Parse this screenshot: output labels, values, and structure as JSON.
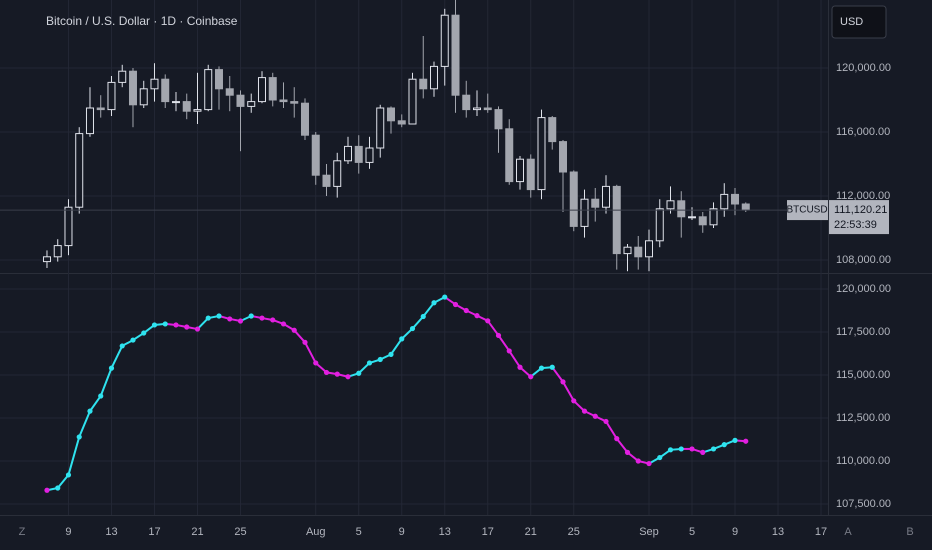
{
  "chart_data": [
    {
      "type": "candlestick",
      "title": "Bitcoin / U.S. Dollar · 1D · Coinbase",
      "up_color": "#e0e3eb",
      "down_color": "#a3a6ae",
      "xlim": [
        -4.37,
        72.65
      ],
      "xticks": [
        {
          "value": 2,
          "label": "9"
        },
        {
          "value": 6,
          "label": "13"
        },
        {
          "value": 10,
          "label": "17"
        },
        {
          "value": 14,
          "label": "21"
        },
        {
          "value": 18,
          "label": "25"
        },
        {
          "value": 25,
          "label": "Aug"
        },
        {
          "value": 29,
          "label": "5"
        },
        {
          "value": 33,
          "label": "9"
        },
        {
          "value": 37,
          "label": "13"
        },
        {
          "value": 41,
          "label": "17"
        },
        {
          "value": 45,
          "label": "21"
        },
        {
          "value": 49,
          "label": "25"
        },
        {
          "value": 56,
          "label": "Sep"
        },
        {
          "value": 60,
          "label": "5"
        },
        {
          "value": 64,
          "label": "9"
        },
        {
          "value": 68,
          "label": "13"
        },
        {
          "value": 72,
          "label": "17"
        }
      ],
      "ylim": [
        107250,
        124250
      ],
      "yticks": [
        {
          "value": 108000,
          "label": "108,000.00"
        },
        {
          "value": 112000,
          "label": "112,000.00"
        },
        {
          "value": 116000,
          "label": "116,000.00"
        },
        {
          "value": 120000,
          "label": "120,000.00"
        }
      ],
      "grid": true,
      "last_price": {
        "value": 111120.21,
        "label": "111,120.21"
      },
      "open": [
        107900,
        108200,
        108900,
        111300,
        115900,
        117500,
        117400,
        119100,
        119800,
        117700,
        118700,
        119300,
        117900,
        117900,
        117300,
        117400,
        119900,
        118700,
        118300,
        117600,
        117900,
        119400,
        118000,
        117900,
        117800,
        115800,
        113300,
        112600,
        114200,
        115100,
        114100,
        115000,
        117500,
        116700,
        116500,
        119300,
        118700,
        120100,
        123300,
        118300,
        117400,
        117500,
        117400,
        116200,
        112900,
        114300,
        112400,
        116900,
        115400,
        113500,
        110100,
        111800,
        111300,
        112600,
        108400,
        108800,
        108200,
        109200,
        111200,
        111700,
        110700,
        110700,
        110200,
        111200,
        112100,
        111500
      ],
      "high": [
        108600,
        109300,
        111800,
        116300,
        118800,
        118300,
        119500,
        120200,
        120000,
        119200,
        120300,
        119600,
        118500,
        118400,
        119700,
        120200,
        120100,
        119500,
        118600,
        118400,
        119800,
        119700,
        119100,
        118800,
        118100,
        116000,
        114000,
        114700,
        115700,
        115800,
        115700,
        117700,
        117600,
        117100,
        119700,
        122000,
        120400,
        123700,
        124400,
        119200,
        118600,
        118400,
        117600,
        116800,
        114500,
        114600,
        117400,
        117000,
        115500,
        113600,
        112400,
        112500,
        113300,
        112700,
        109000,
        109500,
        109900,
        111800,
        112600,
        112300,
        111300,
        111000,
        111600,
        112800,
        112500,
        111600
      ],
      "low": [
        107500,
        107900,
        108300,
        110900,
        115700,
        116900,
        117000,
        118800,
        116300,
        117500,
        117900,
        117500,
        117300,
        116800,
        116500,
        117300,
        117400,
        117300,
        114800,
        117200,
        117800,
        117600,
        117500,
        116900,
        115500,
        112700,
        112000,
        111900,
        114000,
        113400,
        113700,
        114400,
        115900,
        116300,
        116500,
        118100,
        118200,
        118900,
        117200,
        116900,
        117000,
        117200,
        114700,
        112700,
        112400,
        111900,
        111800,
        114900,
        111000,
        109800,
        109400,
        110400,
        110900,
        107400,
        107300,
        107400,
        107300,
        108800,
        110900,
        109400,
        110500,
        109700,
        110000,
        110700,
        110800,
        111000
      ],
      "close": [
        108200,
        108900,
        111300,
        115900,
        117500,
        117400,
        119100,
        119800,
        117700,
        118700,
        119300,
        117900,
        117900,
        117300,
        117400,
        119900,
        118700,
        118300,
        117600,
        117900,
        119400,
        118000,
        117900,
        117800,
        115800,
        113300,
        112600,
        114200,
        115100,
        114100,
        115000,
        117500,
        116700,
        116500,
        119300,
        118700,
        120100,
        123300,
        118300,
        117400,
        117500,
        117400,
        116200,
        112900,
        114300,
        112400,
        116900,
        115400,
        113500,
        110100,
        111800,
        111300,
        112600,
        108400,
        108800,
        108200,
        109200,
        111200,
        111700,
        110700,
        110700,
        110200,
        111200,
        112100,
        111500,
        111120.21
      ]
    },
    {
      "type": "line",
      "up_color": "#2fe3ef",
      "down_color": "#e21fe0",
      "xlim": [
        -4.37,
        72.65
      ],
      "ylim": [
        106860,
        120814
      ],
      "yticks": [
        {
          "value": 107500,
          "label": "107,500.00"
        },
        {
          "value": 110000,
          "label": "110,000.00"
        },
        {
          "value": 112500,
          "label": "112,500.00"
        },
        {
          "value": 115000,
          "label": "115,000.00"
        },
        {
          "value": 117500,
          "label": "117,500.00"
        },
        {
          "value": 120000,
          "label": "120,000.00"
        }
      ],
      "grid": true,
      "values": [
        108300,
        108430,
        109190,
        111400,
        112900,
        113780,
        115400,
        116690,
        117030,
        117440,
        117910,
        117970,
        117910,
        117790,
        117670,
        118310,
        118430,
        118260,
        118140,
        118430,
        118310,
        118200,
        117970,
        117600,
        116900,
        115700,
        115150,
        115050,
        114900,
        115100,
        115700,
        115900,
        116200,
        117100,
        117700,
        118400,
        119200,
        119530,
        119100,
        118750,
        118450,
        118150,
        117300,
        116400,
        115450,
        114900,
        115400,
        115450,
        114600,
        113500,
        112900,
        112600,
        112300,
        111300,
        110500,
        110000,
        109850,
        110200,
        110650,
        110700,
        110700,
        110500,
        110700,
        110950,
        111200,
        111150
      ]
    }
  ],
  "ui": {
    "currency_button": "USD",
    "symbol_tag": "BTCUSD",
    "countdown": "22:53:39",
    "left_corner": "Z",
    "right_buttons": [
      "A",
      "B"
    ]
  }
}
